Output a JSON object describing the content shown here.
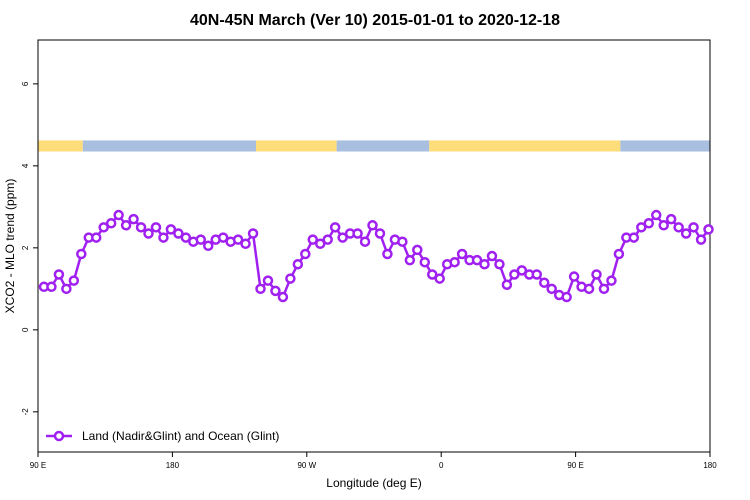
{
  "chart_data": {
    "type": "line",
    "title": "40N-45N March (Ver 10)   2015-01-01 to 2020-12-18",
    "x_label": "Longitude (deg E)",
    "y_label": "XCO2 - MLO trend (ppm)",
    "xlim": [
      90,
      540
    ],
    "ylim": [
      -2.98,
      7.07
    ],
    "xticks": [
      {
        "value": 90,
        "label": "90 E"
      },
      180,
      {
        "value": 270,
        "label": "90 W"
      },
      {
        "value": 360,
        "label": "0"
      },
      {
        "value": 450,
        "label": "90 E"
      },
      {
        "value": 540,
        "label": "180"
      }
    ],
    "yticks": [
      -2,
      0,
      2,
      4,
      6
    ],
    "legend": "bottom-left",
    "strip": {
      "ylim": [
        4.35,
        4.62
      ],
      "segments": [
        {
          "from": 90,
          "to": 120,
          "color": "#fddc7a"
        },
        {
          "from": 120,
          "to": 236,
          "color": "#a8bfe0"
        },
        {
          "from": 236,
          "to": 290,
          "color": "#fddc7a"
        },
        {
          "from": 290,
          "to": 352,
          "color": "#a8bfe0"
        },
        {
          "from": 352,
          "to": 480,
          "color": "#fddc7a"
        },
        {
          "from": 480,
          "to": 540,
          "color": "#a8bfe0"
        }
      ]
    },
    "x": [
      94,
      99,
      104,
      109,
      114,
      119,
      124,
      129,
      134,
      139,
      144,
      149,
      154,
      159,
      164,
      169,
      174,
      179,
      184,
      189,
      194,
      199,
      204,
      209,
      214,
      219,
      224,
      229,
      234,
      239,
      244,
      249,
      254,
      259,
      264,
      269,
      274,
      279,
      284,
      289,
      294,
      299,
      304,
      309,
      314,
      319,
      324,
      329,
      334,
      339,
      344,
      349,
      354,
      359,
      364,
      369,
      374,
      379,
      384,
      389,
      394,
      399,
      404,
      409,
      414,
      419,
      424,
      429,
      434,
      439,
      444,
      449,
      454,
      459,
      464,
      469,
      474,
      479,
      484,
      489,
      494,
      499,
      504,
      509,
      514,
      519,
      524,
      529,
      534,
      539
    ],
    "series": [
      {
        "name": "Land (Nadir&Glint) and Ocean (Glint)",
        "color": "#a020f0",
        "values": [
          1.05,
          1.05,
          1.35,
          1.0,
          1.2,
          1.85,
          2.25,
          2.25,
          2.5,
          2.6,
          2.8,
          2.55,
          2.7,
          2.5,
          2.35,
          2.5,
          2.25,
          2.45,
          2.35,
          2.25,
          2.15,
          2.2,
          2.05,
          2.2,
          2.25,
          2.15,
          2.2,
          2.1,
          2.35,
          1.0,
          1.2,
          0.95,
          0.8,
          1.25,
          1.6,
          1.85,
          2.2,
          2.1,
          2.2,
          2.5,
          2.25,
          2.35,
          2.35,
          2.15,
          2.55,
          2.35,
          1.85,
          2.2,
          2.15,
          1.7,
          1.95,
          1.65,
          1.35,
          1.25,
          1.6,
          1.65,
          1.85,
          1.7,
          1.7,
          1.6,
          1.8,
          1.6,
          1.1,
          1.35,
          1.45,
          1.35,
          1.35,
          1.15,
          1.0,
          0.85,
          0.8,
          1.3,
          1.05,
          1.0,
          1.35,
          1.0,
          1.2,
          1.85,
          2.25,
          2.25,
          2.5,
          2.6,
          2.8,
          2.55,
          2.7,
          2.5,
          2.35,
          2.5,
          2.2,
          2.45
        ]
      }
    ]
  }
}
